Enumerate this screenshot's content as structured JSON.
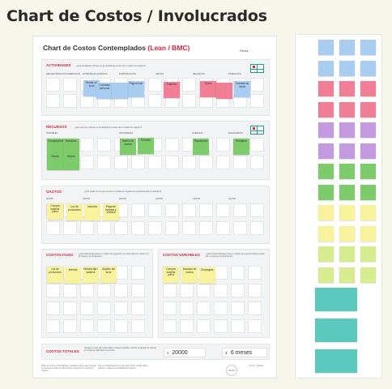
{
  "page_title": "Chart de Costos / Involucrados",
  "colors": {
    "blue": "#a9cdf0",
    "pink": "#f07e95",
    "purple": "#c49ae0",
    "green": "#7dcb6b",
    "yellow": "#f7f29b",
    "lime": "#d6ec8e",
    "teal": "#5bc9bd",
    "accent": "#e0243c",
    "panel_bg": "#f1f3f4"
  },
  "board": {
    "title": "Chart de Costos Contemplados",
    "title_accent": "(Lean / BMC)",
    "fecha_label": "Fecha:",
    "actividades": {
      "title": "ACTIVIDADES",
      "desc": "¿Qué actividades influyen en la cantidad de costos de tu modelo de negocio?",
      "columns": [
        "RED DE PRODUCTOS/SERVICIOS",
        "ESTRATEGIA LOGÍSTICA",
        "COMUNICACIÓN",
        "VENTAS",
        "RECURSOS",
        "OPERACIÓN"
      ],
      "notes": [
        {
          "label": "Rentar un local",
          "color": "blue"
        },
        {
          "label": "Contratar personal",
          "color": "blue"
        },
        {
          "label": "",
          "color": "blue"
        },
        {
          "label": "Página web",
          "color": "blue"
        },
        {
          "label": "Pasteles",
          "color": "pink"
        },
        {
          "label": "Flyers",
          "color": "pink"
        },
        {
          "label": "",
          "color": "pink"
        },
        {
          "label": "Cuentas de venta",
          "color": "blue"
        }
      ]
    },
    "recursos": {
      "title": "RECURSOS",
      "desc": "¿Qué recursos influyen en la cantidad de costos de tu modelo de negocio?",
      "columns": [
        "TANGIBLES",
        "INTANGIBLES",
        "HUMANOS",
        "FINANCIEROS"
      ],
      "notes": [
        {
          "label": "Computadoras",
          "color": "green"
        },
        {
          "label": "Batidoras",
          "color": "green"
        },
        {
          "label": "Estufa",
          "color": "green"
        },
        {
          "label": "Mixers",
          "color": "green"
        },
        {
          "label": "Diseño de marca",
          "color": "green"
        },
        {
          "label": "Recetas",
          "color": "green"
        },
        {
          "label": "Reposteros",
          "color": "green"
        },
        {
          "label": "Préstamo",
          "color": "green"
        }
      ]
    },
    "gastos": {
      "title": "GASTOS",
      "desc": "¿Qué gastos en los que incurre tu modelo de negocio se consideran fijos o variables?",
      "columns": [
        "GASTO",
        "GASTO",
        "GASTO",
        "GASTO",
        "GASTO",
        "GASTO"
      ],
      "notes": [
        {
          "label": "Compra materia prima",
          "color": "yellow"
        },
        {
          "label": "Luz de producción",
          "color": "yellow"
        },
        {
          "label": "Insumos",
          "color": "yellow"
        },
        {
          "label": "Pago de tarjetas y sueldos",
          "color": "yellow"
        }
      ]
    },
    "costos_fijos": {
      "title": "COSTOS FIJOS",
      "desc": "¿Qué Costos Fijos tiene tu modelo de negocio? Los costos fijos no varían con el volumen de producción.",
      "notes": [
        {
          "label": "Luz de producción",
          "color": "yellow"
        },
        {
          "label": "Internet",
          "color": "yellow"
        },
        {
          "label": "Nómina fija / salarios",
          "color": "yellow"
        },
        {
          "label": "Alquiler del local",
          "color": "yellow"
        }
      ]
    },
    "costos_variables": {
      "title": "COSTOS VARIABLES",
      "desc": "¿Qué Costos Variables tiene tu modelo de negocio? Estos varían con el volumen de producción.",
      "notes": [
        {
          "label": "Compra materia prima",
          "color": "yellow"
        },
        {
          "label": "Insumos de cocina",
          "color": "yellow"
        },
        {
          "label": "Empaques",
          "color": "yellow"
        }
      ]
    },
    "costos_totales": {
      "title": "COSTOS TOTALES",
      "desc": "Agrega la suma de Costos Fijos y Costos Variables. Define el periodo de tiempo en el que se calcularon los costos.",
      "currency_symbol": "$",
      "amount": "20000",
      "period_symbol": "⧗",
      "period": "6 meses"
    },
    "footer": {
      "left": "Chart de Costos Contemplados, plantilla de apoyo para la toma de decisiones sobre la estructura de costos de un modelo de negocio.",
      "mid": "Una vez identificados los costos del modelo podrás definir precios y evaluar la rentabilidad del negocio.",
      "logo": "ITESO",
      "version": "CC 4.0 · plantilla"
    }
  },
  "palette": {
    "rows": [
      [
        "blue",
        "blue",
        "blue"
      ],
      [
        "blue",
        "blue",
        "blue"
      ],
      [
        "pink",
        "pink",
        "pink"
      ],
      [
        "pink",
        "pink",
        "pink"
      ],
      [
        "purple",
        "purple",
        "purple"
      ],
      [
        "purple",
        "purple",
        "purple"
      ],
      [
        "green",
        "green",
        "green"
      ],
      [
        "green",
        "green",
        "green"
      ],
      [
        "yellow",
        "yellow",
        "yellow"
      ],
      [
        "yellow",
        "yellow",
        "yellow"
      ],
      [
        "lime",
        "lime",
        "lime"
      ],
      [
        "lime",
        "lime",
        "lime"
      ]
    ],
    "wide": [
      "teal",
      "teal",
      "teal"
    ]
  }
}
